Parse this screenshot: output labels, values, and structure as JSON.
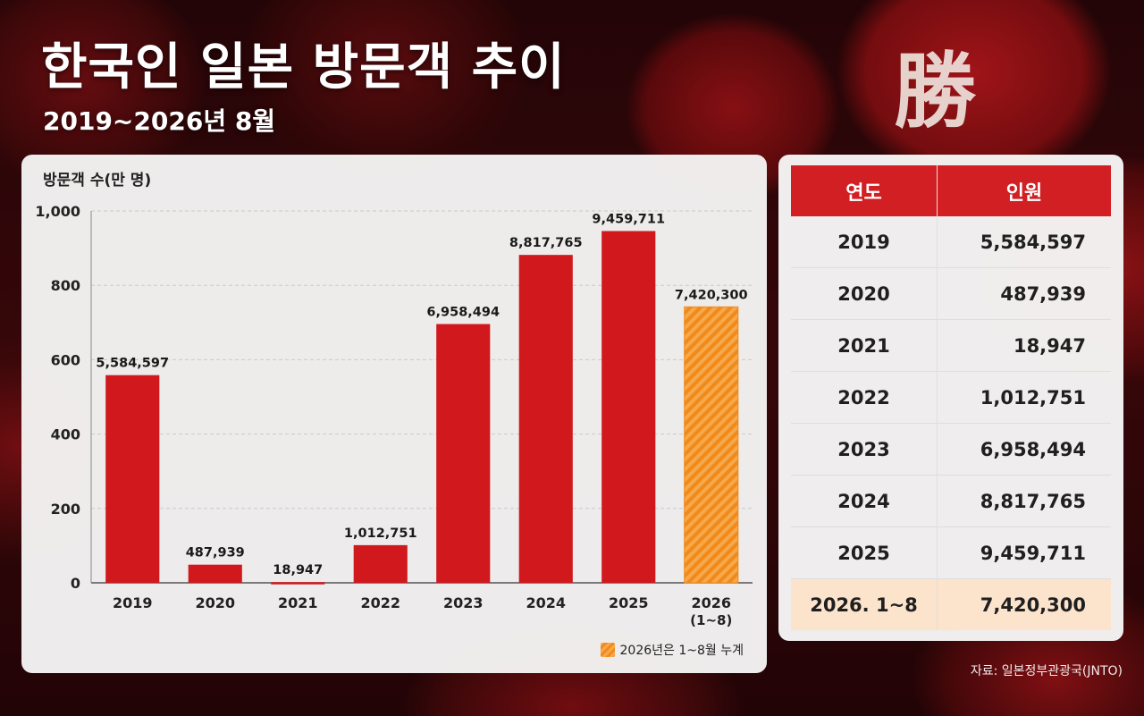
{
  "header": {
    "title": "한국인 일본 방문객 추이",
    "subtitle": "2019~2026년 8월",
    "bg_kanji": "勝"
  },
  "chart_data": {
    "type": "bar",
    "ylabel": "방문객 수(만 명)",
    "ylim": [
      0,
      1000
    ],
    "yticks": [
      0,
      200,
      400,
      600,
      800,
      1000
    ],
    "ytick_labels": [
      "0",
      "200",
      "400",
      "600",
      "800",
      "1,000"
    ],
    "categories": [
      "2019",
      "2020",
      "2021",
      "2022",
      "2023",
      "2024",
      "2025",
      "2026"
    ],
    "category_sublabels": [
      "",
      "",
      "",
      "",
      "",
      "",
      "",
      "(1~8)"
    ],
    "values": [
      558.4597,
      48.7939,
      1.8947,
      101.2751,
      695.8494,
      881.7765,
      945.9711,
      742.03
    ],
    "data_labels": [
      "5,584,597",
      "487,939",
      "18,947",
      "1,012,751",
      "6,958,494",
      "8,817,765",
      "9,459,711",
      "7,420,300"
    ],
    "grid": true,
    "bar_color": "#d0181d",
    "highlight_color": "#f59323",
    "highlight_index": 7,
    "legend": {
      "label": "2026년은 1~8월 누계",
      "position": "bottom-right"
    }
  },
  "table": {
    "headers": [
      "연도",
      "인원"
    ],
    "rows": [
      {
        "year": "2019",
        "count": "5,584,597"
      },
      {
        "year": "2020",
        "count": "487,939"
      },
      {
        "year": "2021",
        "count": "18,947"
      },
      {
        "year": "2022",
        "count": "1,012,751"
      },
      {
        "year": "2023",
        "count": "6,958,494"
      },
      {
        "year": "2024",
        "count": "8,817,765"
      },
      {
        "year": "2025",
        "count": "9,459,711"
      },
      {
        "year": "2026. 1~8",
        "count": "7,420,300"
      }
    ]
  },
  "source": "자료: 일본정부관광국(JNTO)",
  "colors": {
    "accent": "#d21f23",
    "highlight_row": "#fbe3cc"
  }
}
